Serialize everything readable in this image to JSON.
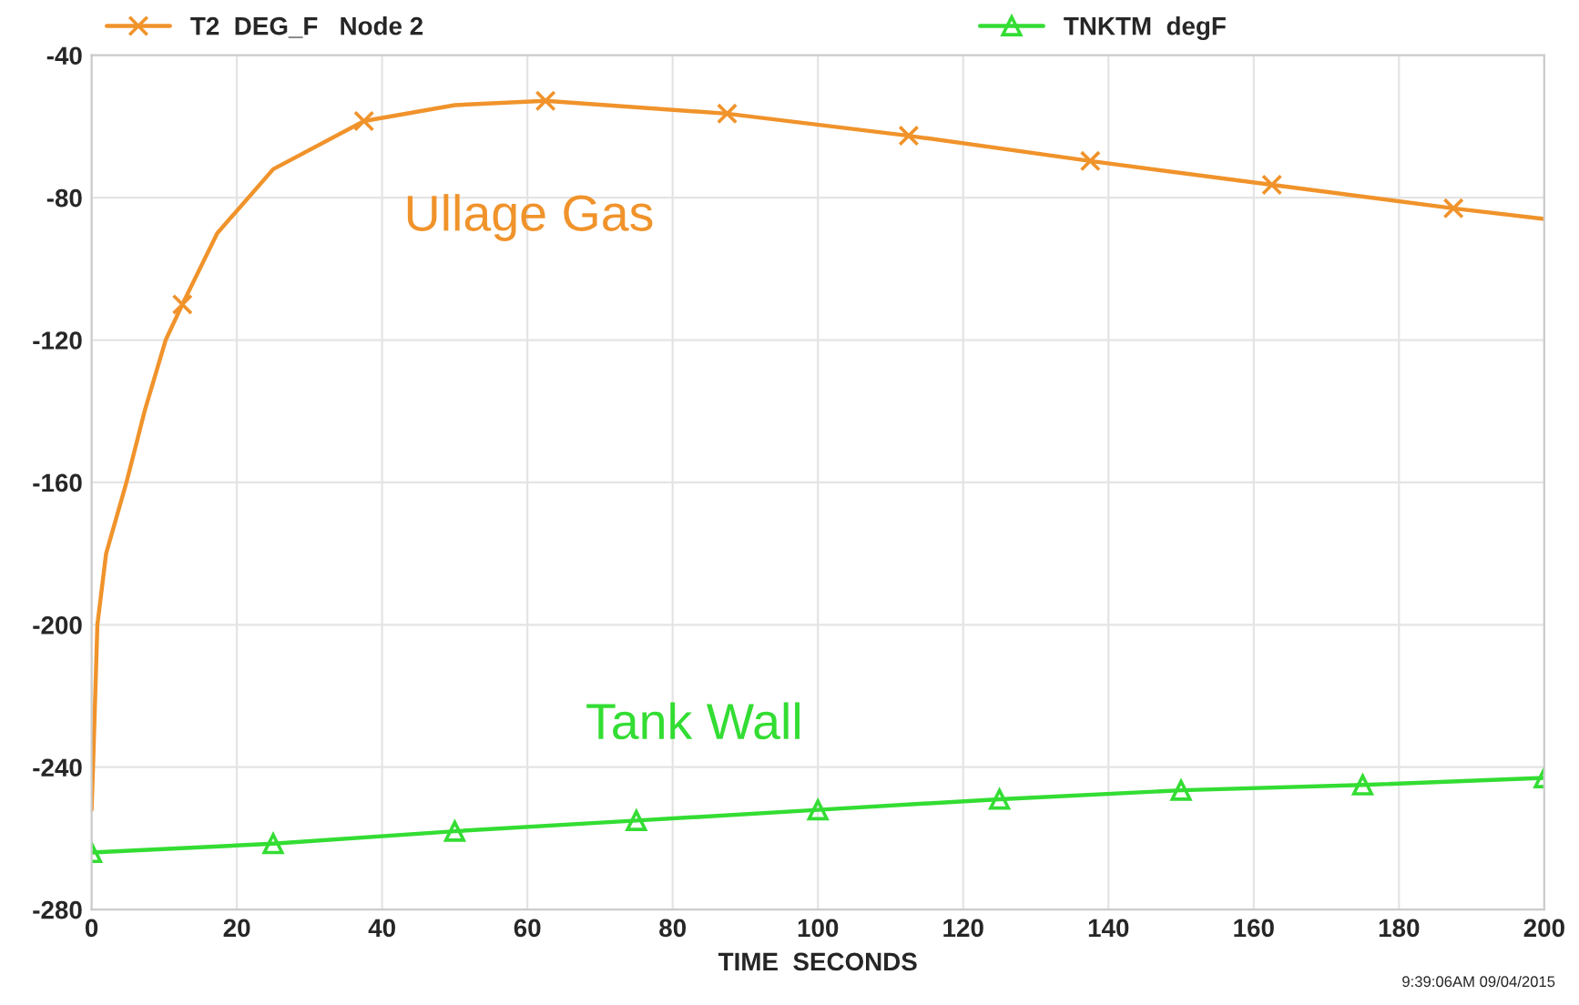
{
  "chart_data": {
    "type": "line",
    "xlabel": "TIME  SECONDS",
    "xlim": [
      0,
      200
    ],
    "xticks": [
      0,
      20,
      40,
      60,
      80,
      100,
      120,
      140,
      160,
      180,
      200
    ],
    "ylim": [
      -280,
      -40
    ],
    "yticks": [
      -280,
      -240,
      -200,
      -160,
      -120,
      -80,
      -40
    ],
    "grid": true,
    "legend": "top",
    "line_style": "solid",
    "series": [
      {
        "color": "#f0932b",
        "marker": "none",
        "x": [
          0,
          0.2,
          0.8,
          2,
          4.8,
          7.3,
          10.2,
          12.5,
          17.3,
          25,
          37.5,
          50,
          62.5,
          87.5,
          112.5,
          137.5,
          162.5,
          187.5,
          200
        ],
        "values": [
          -252,
          -240,
          -200,
          -180,
          -160,
          -140,
          -120,
          -110,
          -90,
          -72,
          -58.5,
          -54,
          -52.8,
          -56.4,
          -62.6,
          -69.7,
          -76.4,
          -83,
          -86
        ]
      },
      {
        "name": "T2  DEG_F   Node 2",
        "type": "scatter",
        "color": "#f0932b",
        "marker": "cross",
        "x": [
          12.5,
          37.5,
          62.5,
          87.5,
          112.5,
          137.5,
          162.5,
          187.5
        ],
        "values": [
          -110,
          -58.5,
          -52.8,
          -56.4,
          -62.6,
          -69.7,
          -76.4,
          -83
        ]
      },
      {
        "name": "TNKTM  degF",
        "color": "#33dd33",
        "marker": "triangle",
        "x": [
          0,
          25,
          50,
          75,
          100,
          125,
          150,
          175,
          200
        ],
        "values": [
          -264,
          -261.5,
          -258,
          -255,
          -252,
          -249,
          -246.5,
          -245,
          -243
        ]
      }
    ],
    "annotations": [
      "Ullage Gas",
      "Tank Wall",
      "9:39:06AM 09/04/2015"
    ]
  }
}
